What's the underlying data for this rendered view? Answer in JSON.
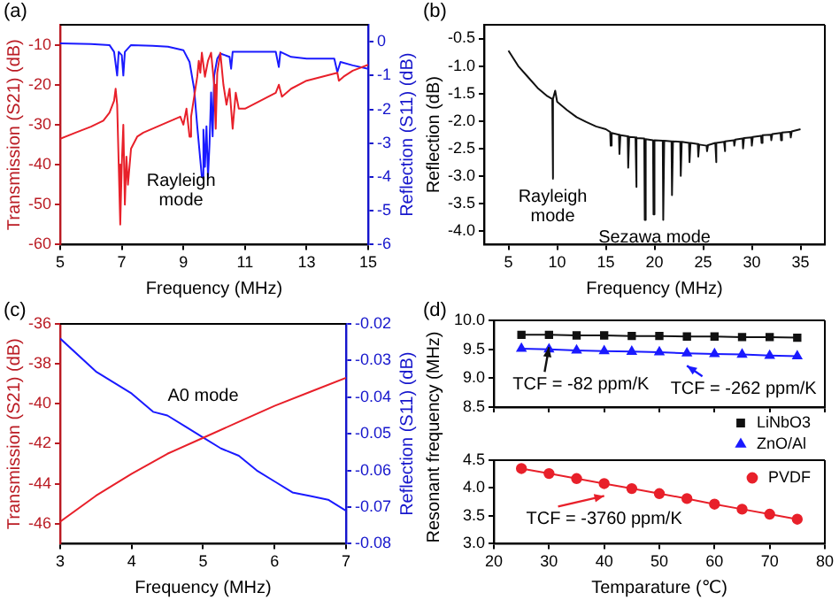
{
  "chart_data": [
    {
      "type": "line",
      "title": "(a)",
      "xlabel": "Frequency (MHz)",
      "ylabel": "Transmission (S21) (dB)",
      "y2label": "Reflection (S11) (dB)",
      "xlim": [
        5,
        15
      ],
      "xticks": [
        5,
        7,
        9,
        11,
        13,
        15
      ],
      "ylim": [
        -60,
        -5
      ],
      "yticks": [
        -60,
        -50,
        -40,
        -30,
        -20,
        -10
      ],
      "y2lim": [
        -6,
        0.5
      ],
      "y2ticks": [
        -6,
        -5,
        -4,
        -3,
        -2,
        -1,
        0
      ],
      "grid": false,
      "marker": "none",
      "annotations": [
        {
          "text": "Rayleigh mode",
          "x": 9.5,
          "y": -42
        }
      ],
      "series": [
        {
          "color": "#e8202a",
          "x": [
            5.0,
            5.5,
            6.0,
            6.4,
            6.6,
            6.75,
            6.8,
            6.85,
            6.9,
            6.95,
            7.0,
            7.05,
            7.1,
            7.15,
            7.2,
            7.3,
            7.5,
            7.7,
            8.0,
            8.3,
            8.6,
            8.9,
            9.0,
            9.1,
            9.2,
            9.25,
            9.35,
            9.45,
            9.5,
            9.55,
            9.6,
            9.7,
            9.8,
            9.9,
            10.0,
            10.05,
            10.1,
            10.2,
            10.3,
            10.4,
            10.5,
            10.6,
            10.7,
            10.8,
            11.0,
            11.5,
            12.0,
            12.1,
            12.2,
            12.5,
            13.0,
            13.5,
            14.0,
            14.05,
            14.2,
            14.5,
            15.0
          ],
          "values": [
            -33.5,
            -32,
            -30.5,
            -29,
            -27,
            -24,
            -21,
            -25,
            -40,
            -55,
            -40,
            -30,
            -50,
            -38,
            -45,
            -36,
            -33,
            -32,
            -31,
            -30,
            -29,
            -28,
            -30,
            -26,
            -33,
            -28,
            -23,
            -18,
            -14,
            -17,
            -12,
            -18,
            -14,
            -12,
            -20,
            -31,
            -17,
            -12,
            -20,
            -25,
            -21,
            -31,
            -22,
            -26,
            -26,
            -24,
            -22,
            -20,
            -23,
            -21,
            -19,
            -18,
            -17,
            -19,
            -18,
            -16.5,
            -15
          ]
        },
        {
          "color": "#1a1aff",
          "axis": "y2",
          "x": [
            5.0,
            6.0,
            6.6,
            6.75,
            6.85,
            6.9,
            7.0,
            7.05,
            7.1,
            7.3,
            8.0,
            8.5,
            9.0,
            9.2,
            9.35,
            9.45,
            9.55,
            9.6,
            9.65,
            9.7,
            9.75,
            9.8,
            9.85,
            9.9,
            9.95,
            10.0,
            10.1,
            10.2,
            10.5,
            10.55,
            10.6,
            11.0,
            12.0,
            12.1,
            12.15,
            12.5,
            13.0,
            13.9,
            14.0,
            14.1,
            14.5,
            15.0
          ],
          "values": [
            -0.05,
            -0.07,
            -0.1,
            -0.3,
            -1.0,
            -0.3,
            -0.4,
            -1.0,
            -0.3,
            -0.1,
            -0.12,
            -0.15,
            -0.25,
            -0.6,
            -1.4,
            -2.5,
            -3.5,
            -4.0,
            -2.6,
            -3.7,
            -2.5,
            -4.0,
            -3.0,
            -1.5,
            -2.8,
            -1.0,
            -0.5,
            -0.35,
            -0.45,
            -0.8,
            -0.3,
            -0.3,
            -0.3,
            -0.75,
            -0.3,
            -0.45,
            -0.5,
            -0.5,
            -0.9,
            -0.6,
            -0.7,
            -0.8
          ]
        }
      ]
    },
    {
      "type": "line",
      "title": "(b)",
      "xlabel": "Frequency (MHz)",
      "ylabel": "Reflection (dB)",
      "xlim": [
        2.5,
        37.5
      ],
      "xticks": [
        5,
        10,
        15,
        20,
        25,
        30,
        35
      ],
      "ylim": [
        -4.25,
        -0.25
      ],
      "yticks": [
        {
          "value": -4,
          "label": "-4.0"
        },
        {
          "value": -3.5,
          "label": "-3.5"
        },
        {
          "value": -3,
          "label": "-3.0"
        },
        {
          "value": -2.5,
          "label": "-2.5"
        },
        {
          "value": -2,
          "label": "-2.0"
        },
        {
          "value": -1.5,
          "label": "-1.5"
        },
        {
          "value": -1,
          "label": "-1.0"
        },
        {
          "value": -0.5,
          "label": "-0.5"
        }
      ],
      "grid": false,
      "marker": "none",
      "annotations": [
        {
          "text": "Rayleigh mode",
          "x": 9.55,
          "y": -3.05
        },
        {
          "text": "Sezawa mode",
          "x": 20,
          "y": -3.8
        }
      ],
      "series": [
        {
          "color": "#111111",
          "x": [
            5,
            6,
            7,
            8,
            9,
            9.5,
            9.55,
            9.6,
            9.8,
            10,
            11,
            12,
            13,
            14,
            15,
            15.45,
            15.5,
            15.6,
            16.35,
            16.4,
            16.5,
            17.25,
            17.3,
            17.4,
            18.05,
            18.1,
            18.2,
            18.95,
            19.0,
            19.1,
            19.85,
            19.9,
            20.0,
            20.85,
            20.9,
            21.0,
            21.75,
            21.8,
            21.9,
            22.65,
            22.7,
            22.8,
            23.55,
            23.6,
            23.7,
            24.45,
            24.5,
            24.6,
            25.35,
            25.4,
            25.5,
            26.25,
            26.3,
            26.4,
            27.15,
            27.2,
            27.3,
            28.15,
            28.2,
            28.3,
            29.05,
            29.1,
            29.2,
            29.95,
            30,
            30.1,
            30.95,
            31,
            31.1,
            31.95,
            32,
            32.1,
            32.95,
            33,
            33.1,
            33.95,
            34,
            34.1,
            35
          ],
          "values": [
            -0.72,
            -1.0,
            -1.2,
            -1.4,
            -1.55,
            -1.6,
            -3.05,
            -1.6,
            -1.45,
            -1.65,
            -1.8,
            -1.93,
            -2.02,
            -2.1,
            -2.15,
            -2.2,
            -2.45,
            -2.22,
            -2.25,
            -2.6,
            -2.26,
            -2.28,
            -2.85,
            -2.29,
            -2.3,
            -3.2,
            -2.31,
            -2.32,
            -3.8,
            -2.33,
            -2.35,
            -3.7,
            -2.35,
            -2.36,
            -3.8,
            -2.36,
            -2.37,
            -3.35,
            -2.37,
            -2.38,
            -3.0,
            -2.38,
            -2.4,
            -2.75,
            -2.4,
            -2.42,
            -2.65,
            -2.43,
            -2.45,
            -2.55,
            -2.44,
            -2.4,
            -2.75,
            -2.4,
            -2.38,
            -2.55,
            -2.37,
            -2.35,
            -2.45,
            -2.34,
            -2.32,
            -2.5,
            -2.31,
            -2.3,
            -2.45,
            -2.29,
            -2.27,
            -2.4,
            -2.26,
            -2.25,
            -2.35,
            -2.24,
            -2.22,
            -2.35,
            -2.21,
            -2.2,
            -2.3,
            -2.19,
            -2.15
          ]
        }
      ]
    },
    {
      "type": "line",
      "title": "(c)",
      "xlabel": "Frequency (MHz)",
      "ylabel": "Transmission (S21) (dB)",
      "y2label": "Reflection (S11) (dB)",
      "xlim": [
        3,
        7
      ],
      "xticks": [
        3,
        4,
        5,
        6,
        7
      ],
      "ylim": [
        -47,
        -36
      ],
      "yticks": [
        -46,
        -44,
        -42,
        -40,
        -38,
        -36
      ],
      "y2lim": [
        -0.08,
        -0.02
      ],
      "y2ticks": [
        -0.08,
        -0.07,
        -0.06,
        -0.05,
        -0.04,
        -0.03,
        -0.02
      ],
      "grid": false,
      "marker": "none",
      "annotations": [
        "A0 mode"
      ],
      "series": [
        {
          "color": "#e8202a",
          "x": [
            3,
            3.5,
            4,
            4.5,
            5,
            5.5,
            6,
            6.5,
            7
          ],
          "values": [
            -45.9,
            -44.6,
            -43.5,
            -42.5,
            -41.7,
            -40.9,
            -40.1,
            -39.4,
            -38.7
          ]
        },
        {
          "color": "#1a1aff",
          "axis": "y2",
          "x": [
            3,
            3.5,
            4,
            4.3,
            4.5,
            4.75,
            5,
            5.25,
            5.5,
            5.75,
            6,
            6.25,
            6.5,
            6.75,
            7
          ],
          "values": [
            -0.024,
            -0.033,
            -0.039,
            -0.044,
            -0.045,
            -0.048,
            -0.051,
            -0.054,
            -0.056,
            -0.06,
            -0.063,
            -0.066,
            -0.067,
            -0.068,
            -0.071
          ]
        }
      ]
    },
    {
      "type": "line",
      "title": "(d)",
      "tick_labels": "y",
      "xlim": [
        20,
        80
      ],
      "xticks": [
        20,
        30,
        40,
        50,
        60,
        70,
        80
      ],
      "ylim": [
        8.5,
        10.0
      ],
      "yticks": [
        {
          "value": 8.5,
          "label": "8.5"
        },
        {
          "value": 9,
          "label": "9.0"
        },
        {
          "value": 9.5,
          "label": "9.5"
        },
        {
          "value": 10,
          "label": "10.0"
        }
      ],
      "grid": false,
      "legend": "bottom right",
      "annotations": [
        {
          "text": "TCF = -82 ppm/K",
          "x": 30,
          "y": 9.75
        },
        {
          "text": "TCF = -262 ppm/K",
          "x": 55,
          "y": 9.43
        }
      ],
      "series": [
        {
          "name": "LiNbO3",
          "color": "#111111",
          "marker": "square",
          "x": [
            25,
            30,
            35,
            40,
            45,
            50,
            55,
            60,
            65,
            70,
            75
          ],
          "values": [
            9.75,
            9.75,
            9.74,
            9.74,
            9.73,
            9.73,
            9.72,
            9.72,
            9.71,
            9.71,
            9.7
          ]
        },
        {
          "name": "ZnO/Al",
          "color": "#1a1aff",
          "marker": "triangle",
          "x": [
            25,
            30,
            35,
            40,
            45,
            50,
            55,
            60,
            65,
            70,
            75
          ],
          "values": [
            9.51,
            9.5,
            9.48,
            9.47,
            9.46,
            9.45,
            9.43,
            9.42,
            9.41,
            9.39,
            9.38
          ]
        }
      ]
    },
    {
      "type": "line",
      "xlabel": "Temparature (℃)",
      "ylabel": "Resonant frequency (MHz)",
      "xlim": [
        20,
        80
      ],
      "xticks": [
        20,
        30,
        40,
        50,
        60,
        70,
        80
      ],
      "ylim": [
        3.0,
        4.5
      ],
      "yticks": [
        {
          "value": 3,
          "label": "3.0"
        },
        {
          "value": 3.5,
          "label": "3.5"
        },
        {
          "value": 4,
          "label": "4.0"
        },
        {
          "value": 4.5,
          "label": "4.5"
        }
      ],
      "grid": false,
      "legend": "top right",
      "annotations": [
        {
          "text": "TCF = -3760 ppm/K",
          "x": 40,
          "y": 4.08
        }
      ],
      "series": [
        {
          "name": "PVDF",
          "color": "#e8202a",
          "marker": "circle",
          "x": [
            25,
            30,
            35,
            40,
            45,
            50,
            55,
            60,
            65,
            70,
            75
          ],
          "values": [
            4.35,
            4.26,
            4.17,
            4.08,
            3.99,
            3.9,
            3.81,
            3.71,
            3.62,
            3.53,
            3.44
          ]
        }
      ]
    }
  ]
}
